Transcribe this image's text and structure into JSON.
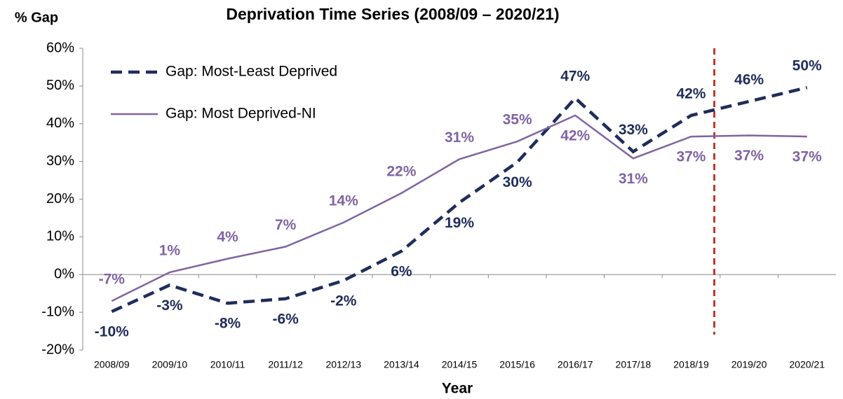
{
  "chart_data": {
    "type": "line",
    "title": "Deprivation Time Series (2008/09 – 2020/21)",
    "y_axis_label": "% Gap",
    "x_axis_label": "Year",
    "categories": [
      "2008/09",
      "2009/10",
      "2010/11",
      "2011/12",
      "2012/13",
      "2013/14",
      "2014/15",
      "2015/16",
      "2016/17",
      "2017/18",
      "2018/19",
      "2019/20",
      "2020/21"
    ],
    "series": [
      {
        "name": "Gap: Most-Least Deprived",
        "color": "#1f2d5a",
        "dashed": true,
        "values": [
          -9.8,
          -2.8,
          -7.6,
          -6.4,
          -1.6,
          6.2,
          19.1,
          29.8,
          46.8,
          32.6,
          42.2,
          45.9,
          49.6
        ],
        "value_labels": [
          "-10%",
          "-3%",
          "-8%",
          "-6%",
          "-2%",
          "6%",
          "19%",
          "30%",
          "47%",
          "33%",
          "42%",
          "46%",
          "50%"
        ]
      },
      {
        "name": "Gap: Most Deprived-NI",
        "color": "#8064a2",
        "dashed": false,
        "values": [
          -7.0,
          0.6,
          4.2,
          7.4,
          13.8,
          21.6,
          30.6,
          35.3,
          42.2,
          30.8,
          36.6,
          36.9,
          36.6
        ],
        "value_labels": [
          "-7%",
          "1%",
          "4%",
          "7%",
          "14%",
          "22%",
          "31%",
          "35%",
          "42%",
          "31%",
          "37%",
          "37%",
          "37%"
        ]
      }
    ],
    "ylim": [
      -20,
      60
    ],
    "yticks": [
      {
        "value": -20,
        "label": "-20%"
      },
      {
        "value": -10,
        "label": "-10%"
      },
      {
        "value": 0,
        "label": "0%"
      },
      {
        "value": 10,
        "label": "10%"
      },
      {
        "value": 20,
        "label": "20%"
      },
      {
        "value": 30,
        "label": "30%"
      },
      {
        "value": 40,
        "label": "40%"
      },
      {
        "value": 50,
        "label": "50%"
      },
      {
        "value": 60,
        "label": "60%"
      }
    ],
    "grid": false,
    "legend": "top-left"
  }
}
